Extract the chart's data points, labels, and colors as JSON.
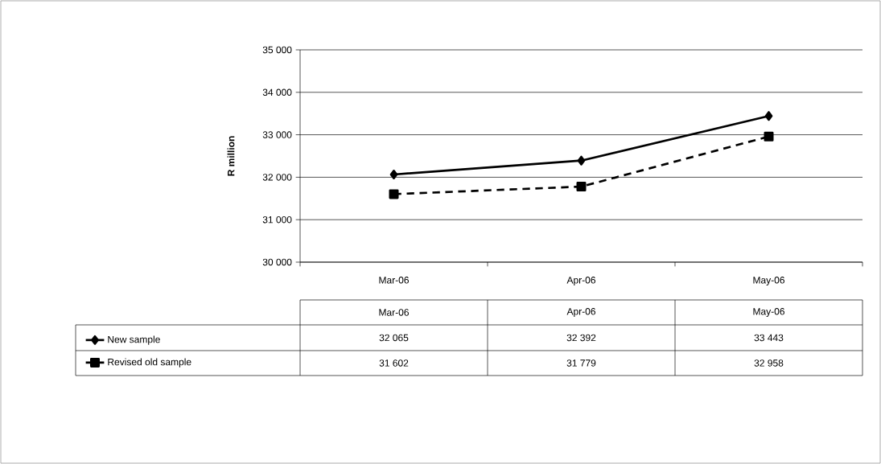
{
  "chart_data": {
    "type": "line",
    "categories": [
      "Mar-06",
      "Apr-06",
      "May-06"
    ],
    "ylabel": "R million",
    "ylim": [
      30000,
      35000
    ],
    "yticks": [
      {
        "value": 30000,
        "label": "30 000"
      },
      {
        "value": 31000,
        "label": "31 000"
      },
      {
        "value": 32000,
        "label": "32 000"
      },
      {
        "value": 33000,
        "label": "33 000"
      },
      {
        "value": 34000,
        "label": "34 000"
      },
      {
        "value": 35000,
        "label": "35 000"
      }
    ],
    "grid": "y",
    "legend": "bottom",
    "data_labels": true,
    "series": [
      {
        "name": "New sample",
        "color": "#000000",
        "values": [
          32065,
          32392,
          33443
        ],
        "marker": "diamond",
        "line_style": "solid"
      },
      {
        "name": "Revised old sample",
        "color": "#000000",
        "values": [
          31602,
          31779,
          32958
        ],
        "marker": "square",
        "line_style": "dashed"
      }
    ]
  }
}
